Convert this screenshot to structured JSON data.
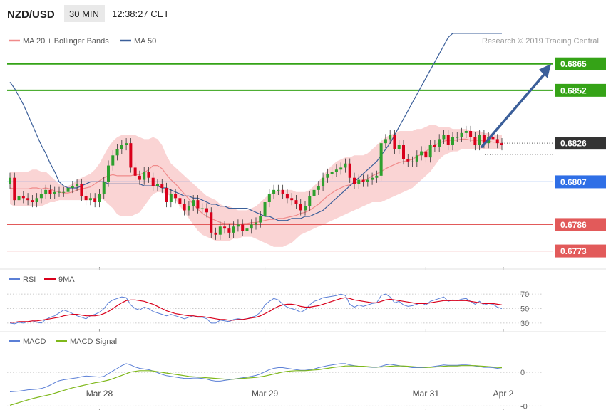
{
  "header": {
    "symbol": "NZD/USD",
    "timeframe": "30 MIN",
    "time": "12:38:27 CET"
  },
  "legend": {
    "bollinger": "MA 20 + Bollinger Bands",
    "ma50": "MA 50",
    "research": "Research © 2019 Trading Central"
  },
  "colors": {
    "bull": "#2ea02e",
    "bear": "#d9001b",
    "ma50": "#3b5f9a",
    "band": "#f8c6c6",
    "green_line": "#35a317",
    "red_line": "#e25a5a",
    "blue_line": "#2f6fe6",
    "arrow": "#3b5f9a",
    "dark_label": "#333333"
  },
  "chart_data": [
    {
      "type": "candlestick",
      "pane": "price",
      "y_range": [
        0.67676,
        0.68726
      ],
      "x_ticks": [
        "Mar 28",
        "Mar 29",
        "Mar 31",
        "Apr 2"
      ],
      "close": [
        0.6809,
        0.6798,
        0.68,
        0.6799,
        0.6798,
        0.6797,
        0.6799,
        0.6801,
        0.6803,
        0.6801,
        0.6802,
        0.6802,
        0.6802,
        0.6804,
        0.6805,
        0.6806,
        0.68,
        0.6798,
        0.6799,
        0.6797,
        0.6801,
        0.6807,
        0.6815,
        0.682,
        0.6823,
        0.6825,
        0.6826,
        0.6814,
        0.681,
        0.6808,
        0.6812,
        0.6809,
        0.6805,
        0.6806,
        0.6804,
        0.6797,
        0.6801,
        0.6799,
        0.6796,
        0.6793,
        0.6795,
        0.6798,
        0.6794,
        0.6794,
        0.6792,
        0.6782,
        0.6781,
        0.6785,
        0.6784,
        0.6782,
        0.6785,
        0.6786,
        0.6783,
        0.6784,
        0.6786,
        0.6787,
        0.679,
        0.6797,
        0.6801,
        0.6803,
        0.6803,
        0.6801,
        0.6799,
        0.6798,
        0.6796,
        0.6793,
        0.6795,
        0.68,
        0.6803,
        0.6805,
        0.6809,
        0.6811,
        0.6812,
        0.6813,
        0.6814,
        0.6816,
        0.6809,
        0.6806,
        0.6808,
        0.6807,
        0.6808,
        0.6809,
        0.681,
        0.6826,
        0.6828,
        0.683,
        0.6823,
        0.6825,
        0.6818,
        0.6817,
        0.6817,
        0.682,
        0.6822,
        0.6819,
        0.6825,
        0.6824,
        0.6828,
        0.683,
        0.6825,
        0.6829,
        0.6829,
        0.6831,
        0.6832,
        0.6829,
        0.6825,
        0.683,
        0.6826,
        0.6829,
        0.6828,
        0.6826,
        0.6825
      ],
      "ma50": [
        0.6856,
        0.6853,
        0.6849,
        0.6845,
        0.684,
        0.6835,
        0.683,
        0.6825,
        0.6821,
        0.6816,
        0.6812,
        0.6807,
        0.6805,
        0.6804,
        0.6804,
        0.6804,
        0.6805,
        0.6806,
        0.6807,
        0.6807,
        0.6807,
        0.6807,
        0.6806,
        0.6806,
        0.6806,
        0.6806,
        0.6806,
        0.6806,
        0.6806,
        0.6806,
        0.6805,
        0.6805,
        0.6805,
        0.6805,
        0.6804,
        0.6804,
        0.6803,
        0.6802,
        0.6801,
        0.68,
        0.68,
        0.6799,
        0.6799,
        0.6798,
        0.6797,
        0.6796,
        0.6796,
        0.6795,
        0.6795,
        0.6794,
        0.6794,
        0.6794,
        0.6794,
        0.6794,
        0.6793,
        0.6792,
        0.6791,
        0.679,
        0.679,
        0.6789,
        0.6788,
        0.6788,
        0.6788,
        0.6789,
        0.6789,
        0.6789,
        0.679,
        0.679,
        0.6791,
        0.6792,
        0.6793,
        0.6795,
        0.6797,
        0.6799,
        0.6801,
        0.6803,
        0.6805,
        0.6807,
        0.6809,
        0.6811,
        0.6813,
        0.6815,
        0.6817,
        0.682,
        0.6823,
        0.6826,
        0.683,
        0.6834,
        0.6838,
        0.6842,
        0.6846,
        0.685,
        0.6854,
        0.6858,
        0.6862,
        0.6866,
        0.687,
        0.6874,
        0.6878,
        0.688,
        0.688,
        0.688,
        0.688,
        0.688,
        0.688,
        0.688,
        0.688,
        0.688,
        0.688,
        0.688,
        0.688
      ],
      "bb_upper": [
        0.6812,
        0.6812,
        0.6812,
        0.6812,
        0.6812,
        0.6813,
        0.6813,
        0.6812,
        0.6812,
        0.681,
        0.6808,
        0.6806,
        0.6805,
        0.6805,
        0.6806,
        0.6808,
        0.6809,
        0.681,
        0.6811,
        0.6813,
        0.6816,
        0.682,
        0.6824,
        0.6827,
        0.6829,
        0.683,
        0.683,
        0.683,
        0.683,
        0.6829,
        0.6828,
        0.6828,
        0.6829,
        0.6828,
        0.6825,
        0.682,
        0.6816,
        0.6814,
        0.6812,
        0.681,
        0.6808,
        0.6806,
        0.6804,
        0.6802,
        0.68,
        0.6799,
        0.6798,
        0.6796,
        0.6795,
        0.6795,
        0.6794,
        0.6793,
        0.6793,
        0.6793,
        0.6794,
        0.6795,
        0.6797,
        0.6799,
        0.6801,
        0.6802,
        0.6803,
        0.6803,
        0.6803,
        0.6803,
        0.6802,
        0.6802,
        0.6802,
        0.6803,
        0.6805,
        0.6807,
        0.681,
        0.6813,
        0.6815,
        0.6817,
        0.6818,
        0.6819,
        0.6819,
        0.682,
        0.682,
        0.682,
        0.6821,
        0.6823,
        0.6825,
        0.6827,
        0.6829,
        0.683,
        0.6831,
        0.6832,
        0.6832,
        0.6832,
        0.6832,
        0.6833,
        0.6833,
        0.6834,
        0.6835,
        0.6835,
        0.6834,
        0.6834,
        0.6834,
        0.6833,
        0.6833,
        0.6833,
        0.6833,
        0.6832,
        0.6832,
        0.6832,
        0.6831,
        0.6831,
        0.683,
        0.683,
        0.683
      ],
      "bb_lower": [
        0.6796,
        0.6795,
        0.6795,
        0.6795,
        0.6795,
        0.6795,
        0.6795,
        0.6795,
        0.6796,
        0.6797,
        0.6797,
        0.6798,
        0.6798,
        0.6798,
        0.6798,
        0.6798,
        0.6798,
        0.6798,
        0.6798,
        0.6799,
        0.6799,
        0.6798,
        0.6796,
        0.6794,
        0.6791,
        0.679,
        0.679,
        0.679,
        0.6791,
        0.6792,
        0.6795,
        0.6798,
        0.6801,
        0.6802,
        0.6802,
        0.6801,
        0.68,
        0.6798,
        0.6795,
        0.6792,
        0.6789,
        0.6786,
        0.6783,
        0.6781,
        0.678,
        0.6779,
        0.6778,
        0.6778,
        0.6778,
        0.6778,
        0.6779,
        0.6779,
        0.678,
        0.678,
        0.678,
        0.6779,
        0.6778,
        0.6777,
        0.6776,
        0.6775,
        0.6775,
        0.6775,
        0.6776,
        0.6777,
        0.6779,
        0.6781,
        0.6782,
        0.6783,
        0.6784,
        0.6785,
        0.6786,
        0.6787,
        0.6788,
        0.6789,
        0.679,
        0.6791,
        0.6792,
        0.6793,
        0.6794,
        0.6795,
        0.6796,
        0.6797,
        0.6797,
        0.6797,
        0.6798,
        0.6799,
        0.68,
        0.6801,
        0.6802,
        0.6803,
        0.6804,
        0.6806,
        0.6808,
        0.681,
        0.6812,
        0.6815,
        0.6818,
        0.682,
        0.6821,
        0.6822,
        0.6822,
        0.6823,
        0.6823,
        0.6823,
        0.6823,
        0.6823,
        0.6823,
        0.6823,
        0.6823,
        0.6823,
        0.6823
      ],
      "levels": [
        {
          "value": 0.6865,
          "label": "0.6865",
          "kind": "resistance"
        },
        {
          "value": 0.6852,
          "label": "0.6852",
          "kind": "resistance"
        },
        {
          "value": 0.6826,
          "label": "0.6826",
          "kind": "last"
        },
        {
          "value": 0.6807,
          "label": "0.6807",
          "kind": "pivot"
        },
        {
          "value": 0.6786,
          "label": "0.6786",
          "kind": "support"
        },
        {
          "value": 0.6773,
          "label": "0.6773",
          "kind": "support"
        }
      ],
      "arrow": {
        "from": 0.6826,
        "to": 0.6865
      }
    },
    {
      "type": "line",
      "pane": "rsi",
      "series_names": [
        "RSI",
        "9MA"
      ],
      "y_range": [
        22,
        78
      ],
      "y_ticks": [
        30,
        50,
        70
      ],
      "rsi": [
        30,
        29,
        31,
        30,
        32,
        33,
        31,
        30,
        35,
        38,
        40,
        44,
        48,
        46,
        43,
        40,
        38,
        36,
        40,
        42,
        45,
        50,
        58,
        62,
        64,
        66,
        65,
        55,
        50,
        48,
        52,
        50,
        46,
        44,
        42,
        40,
        42,
        40,
        38,
        36,
        38,
        40,
        38,
        38,
        36,
        30,
        30,
        34,
        33,
        32,
        35,
        36,
        35,
        36,
        38,
        40,
        45,
        55,
        60,
        64,
        62,
        56,
        52,
        50,
        48,
        45,
        48,
        55,
        60,
        62,
        65,
        66,
        67,
        68,
        70,
        68,
        56,
        52,
        55,
        53,
        55,
        57,
        58,
        68,
        70,
        66,
        58,
        60,
        55,
        53,
        54,
        56,
        58,
        55,
        60,
        62,
        64,
        66,
        60,
        62,
        61,
        63,
        64,
        60,
        56,
        60,
        55,
        57,
        56,
        52,
        50
      ],
      "ma9": [
        31,
        31,
        32,
        32,
        32,
        33,
        33,
        34,
        35,
        36,
        37,
        38,
        40,
        41,
        42,
        42,
        41,
        40,
        40,
        40,
        41,
        43,
        46,
        50,
        54,
        58,
        61,
        62,
        62,
        61,
        60,
        58,
        56,
        53,
        50,
        47,
        45,
        43,
        42,
        41,
        40,
        40,
        39,
        39,
        38,
        37,
        36,
        35,
        35,
        34,
        34,
        35,
        35,
        36,
        37,
        38,
        40,
        43,
        46,
        50,
        53,
        55,
        56,
        56,
        55,
        53,
        52,
        52,
        53,
        54,
        56,
        58,
        60,
        62,
        64,
        65,
        64,
        62,
        61,
        60,
        59,
        58,
        58,
        60,
        62,
        63,
        62,
        61,
        60,
        59,
        58,
        57,
        57,
        57,
        58,
        59,
        60,
        61,
        61,
        61,
        61,
        61,
        61,
        60,
        59,
        58,
        57,
        57,
        57,
        56,
        55
      ]
    },
    {
      "type": "line",
      "pane": "macd",
      "series_names": [
        "MACD",
        "MACD Signal"
      ],
      "y_range": [
        -0.0011,
        0.00066
      ],
      "y_ticks": [
        {
          "value": 0,
          "label": "0"
        },
        {
          "value": -0.001,
          "label": "-0"
        }
      ],
      "macd": [
        -0.00058,
        -0.00057,
        -0.00056,
        -0.00054,
        -0.00052,
        -0.00051,
        -0.0005,
        -0.00048,
        -0.00044,
        -0.00038,
        -0.00031,
        -0.00025,
        -0.00022,
        -0.0002,
        -0.00018,
        -0.00016,
        -0.00013,
        -0.00011,
        -0.00012,
        -0.00013,
        -0.00014,
        -0.00012,
        -4e-05,
        4e-05,
        0.00012,
        0.0002,
        0.00026,
        0.00022,
        0.00016,
        0.00012,
        0.0001,
        8e-05,
        4e-05,
        -1e-05,
        -6e-05,
        -0.0001,
        -0.00012,
        -0.00014,
        -0.00016,
        -0.00018,
        -0.00018,
        -0.00017,
        -0.00017,
        -0.00018,
        -0.0002,
        -0.00024,
        -0.00026,
        -0.00026,
        -0.00024,
        -0.00022,
        -0.0002,
        -0.00018,
        -0.00016,
        -0.00014,
        -0.00012,
        -9e-05,
        -5e-05,
        2e-05,
        8e-05,
        0.00012,
        0.00014,
        0.00014,
        0.00012,
        0.0001,
        8e-05,
        6e-05,
        6e-05,
        8e-05,
        0.0001,
        0.00014,
        0.00017,
        0.0002,
        0.00022,
        0.00024,
        0.00026,
        0.00026,
        0.00022,
        0.0002,
        0.00018,
        0.00017,
        0.00016,
        0.00015,
        0.00015,
        0.00018,
        0.00022,
        0.00024,
        0.00022,
        0.0002,
        0.00018,
        0.00016,
        0.00014,
        0.00014,
        0.00014,
        0.00014,
        0.00016,
        0.00018,
        0.0002,
        0.00022,
        0.00021,
        0.00021,
        0.00021,
        0.00022,
        0.00022,
        0.00021,
        0.00019,
        0.00017,
        0.00015,
        0.00015,
        0.00014,
        0.00012,
        0.0001
      ],
      "signal": [
        -0.00098,
        -0.00094,
        -0.0009,
        -0.00086,
        -0.00082,
        -0.00078,
        -0.00075,
        -0.00072,
        -0.00069,
        -0.00066,
        -0.00062,
        -0.00058,
        -0.00054,
        -0.0005,
        -0.00046,
        -0.00043,
        -0.0004,
        -0.00037,
        -0.00034,
        -0.00031,
        -0.00029,
        -0.00026,
        -0.00023,
        -0.00019,
        -0.00014,
        -9e-05,
        -4e-05,
        1e-05,
        3e-05,
        5e-05,
        5e-05,
        5e-05,
        4e-05,
        2e-05,
        0.0,
        -2e-05,
        -4e-05,
        -6e-05,
        -8e-05,
        -0.0001,
        -0.00012,
        -0.00013,
        -0.00014,
        -0.00015,
        -0.00016,
        -0.00017,
        -0.00018,
        -0.00019,
        -0.0002,
        -0.0002,
        -0.0002,
        -0.00019,
        -0.00018,
        -0.00017,
        -0.00016,
        -0.00015,
        -0.00013,
        -0.00011,
        -8e-05,
        -5e-05,
        -2e-05,
        1e-05,
        3e-05,
        4e-05,
        5e-05,
        5e-05,
        5e-05,
        6e-05,
        7e-05,
        8e-05,
        0.0001,
        0.00012,
        0.00014,
        0.00016,
        0.00017,
        0.00019,
        0.00019,
        0.00019,
        0.00018,
        0.00018,
        0.00017,
        0.00016,
        0.00016,
        0.00016,
        0.00017,
        0.00018,
        0.00019,
        0.00019,
        0.00019,
        0.00018,
        0.00017,
        0.00016,
        0.00016,
        0.00015,
        0.00015,
        0.00016,
        0.00017,
        0.00018,
        0.00019,
        0.00019,
        0.00019,
        0.0002,
        0.0002,
        0.0002,
        0.0002,
        0.00019,
        0.00018,
        0.00017,
        0.00016,
        0.00015,
        0.00014
      ]
    }
  ]
}
